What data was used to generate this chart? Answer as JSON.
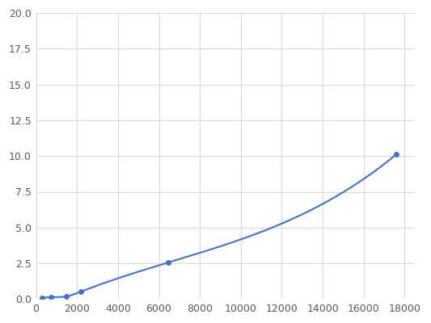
{
  "x": [
    293,
    732,
    1465,
    2197,
    6442,
    17578
  ],
  "y": [
    0.07,
    0.13,
    0.18,
    0.52,
    2.55,
    10.1
  ],
  "line_color": "#4472c4",
  "marker_color": "#4472c4",
  "marker_size": 5,
  "line_width": 1.5,
  "xlim": [
    0,
    18500
  ],
  "ylim": [
    0,
    20.0
  ],
  "xticks": [
    0,
    2000,
    4000,
    6000,
    8000,
    10000,
    12000,
    14000,
    16000,
    18000
  ],
  "yticks": [
    0.0,
    2.5,
    5.0,
    7.5,
    10.0,
    12.5,
    15.0,
    17.5,
    20.0
  ],
  "grid_color": "#d9d9d9",
  "background_color": "#ffffff",
  "plot_bg_color": "#ffffff",
  "tick_fontsize": 9,
  "tick_color": "#595959"
}
